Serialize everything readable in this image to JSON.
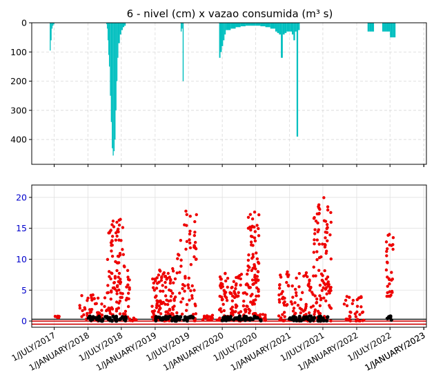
{
  "chart_data": [
    {
      "type": "bar",
      "title": "6 - nivel (cm) x vazao consumida (m³ s)",
      "y_inverted": true,
      "ylim": [
        0,
        485
      ],
      "yticks": [
        "0",
        "100",
        "200",
        "300",
        "400"
      ],
      "grid": true,
      "color": "#00BFBF",
      "series": [
        {
          "x_start": "2017-06-07",
          "x_end": "2017-07-02",
          "levels": [
            95,
            60,
            20,
            10,
            5
          ]
        },
        {
          "x_start": "2018-04-10",
          "x_end": "2018-04-25",
          "levels": [
            5,
            20,
            60,
            110
          ]
        },
        {
          "x_start": "2018-04-25",
          "x_end": "2018-06-15",
          "levels": [
            150,
            250,
            340,
            430,
            455,
            440,
            400,
            300,
            200,
            120
          ]
        },
        {
          "x_start": "2018-06-15",
          "x_end": "2018-07-25",
          "levels": [
            70,
            40,
            25,
            15,
            10
          ]
        },
        {
          "x_start": "2019-05-20",
          "x_end": "2019-06-05",
          "levels": [
            30,
            20,
            200
          ]
        },
        {
          "x_start": "2019-12-15",
          "x_end": "2020-01-20",
          "levels": [
            120,
            100,
            80,
            60,
            40
          ]
        },
        {
          "x_start": "2020-01-20",
          "x_end": "2020-10-15",
          "levels": [
            25,
            20,
            15,
            12,
            10,
            10,
            10,
            12,
            15,
            20
          ]
        },
        {
          "x_start": "2020-10-15",
          "x_end": "2021-01-05",
          "levels": [
            30,
            35,
            40,
            120,
            40,
            35,
            30,
            30
          ]
        },
        {
          "x_start": "2021-01-05",
          "x_end": "2021-02-25",
          "levels": [
            30,
            40,
            60,
            30,
            390,
            25
          ]
        },
        {
          "x_start": "2022-03-01",
          "x_end": "2022-04-05",
          "levels": [
            30,
            30,
            30
          ]
        },
        {
          "x_start": "2022-05-20",
          "x_end": "2022-07-01",
          "levels": [
            30,
            30,
            30,
            30
          ]
        },
        {
          "x_start": "2022-07-01",
          "x_end": "2022-07-31",
          "levels": [
            50,
            50
          ]
        }
      ]
    },
    {
      "type": "scatter",
      "ylim": [
        -1,
        22
      ],
      "yticks": [
        "0",
        "5",
        "10",
        "15",
        "20"
      ],
      "grid": true,
      "xticks": [
        "1/JULY/2017",
        "1/JANUARY/2018",
        "1/JULY/2018",
        "1/JANUARY/2019",
        "1/JULY/2019",
        "1/JANUARY/2020",
        "1/JULY/2020",
        "1/JANUARY/2021",
        "1/JULY/2021",
        "1/JANUARY/2022",
        "1/JULY/2022",
        "1/JANUARY/2023",
        "1/JANUARY/2023"
      ],
      "xtick_dates": [
        "2017-07-01",
        "2018-01-01",
        "2018-07-01",
        "2019-01-01",
        "2019-07-01",
        "2020-01-01",
        "2020-07-01",
        "2021-01-01",
        "2021-07-01",
        "2022-01-01",
        "2022-07-01",
        "2023-01-01",
        "2023-01-01"
      ],
      "xlim": [
        "2017-03-01",
        "2023-01-15"
      ],
      "reference_lines": [
        {
          "y": 0,
          "color": "#cc0000"
        },
        {
          "y": -0.5,
          "color": "#cc0000"
        },
        {
          "y": 0.3,
          "color": "#000000"
        }
      ],
      "series": [
        {
          "color": "#ee0000",
          "clusters": [
            {
              "x_start": "2017-07-01",
              "x_end": "2017-08-01",
              "y_min": 0.5,
              "y_max": 0.8,
              "count": 10
            },
            {
              "x_start": "2017-11-15",
              "x_end": "2018-04-15",
              "y_min": 0.0,
              "y_max": 4.5,
              "count": 45
            },
            {
              "x_start": "2018-04-15",
              "x_end": "2018-07-15",
              "y_min": 1.0,
              "y_max": 16.5,
              "count": 90
            },
            {
              "x_start": "2018-07-15",
              "x_end": "2018-08-15",
              "y_min": 0.0,
              "y_max": 9.0,
              "count": 20
            },
            {
              "x_start": "2018-08-15",
              "x_end": "2018-09-20",
              "y_min": 0.0,
              "y_max": 0.5,
              "count": 8
            },
            {
              "x_start": "2018-12-15",
              "x_end": "2019-04-20",
              "y_min": 0.0,
              "y_max": 8.5,
              "count": 110
            },
            {
              "x_start": "2019-04-20",
              "x_end": "2019-08-15",
              "y_min": 0.0,
              "y_max": 18.0,
              "count": 70
            },
            {
              "x_start": "2019-09-15",
              "x_end": "2019-12-15",
              "y_min": 0.0,
              "y_max": 1.0,
              "count": 15
            },
            {
              "x_start": "2019-12-15",
              "x_end": "2020-05-20",
              "y_min": 0.0,
              "y_max": 8.0,
              "count": 110
            },
            {
              "x_start": "2020-05-20",
              "x_end": "2020-07-20",
              "y_min": 0.5,
              "y_max": 18.5,
              "count": 80
            },
            {
              "x_start": "2020-07-20",
              "x_end": "2020-08-25",
              "y_min": 0.0,
              "y_max": 1.2,
              "count": 12
            },
            {
              "x_start": "2020-11-01",
              "x_end": "2021-05-01",
              "y_min": 0.0,
              "y_max": 8.0,
              "count": 95
            },
            {
              "x_start": "2021-05-01",
              "x_end": "2021-08-15",
              "y_min": 0.0,
              "y_max": 21.0,
              "count": 110
            },
            {
              "x_start": "2021-10-20",
              "x_end": "2022-02-15",
              "y_min": 0.0,
              "y_max": 4.0,
              "count": 35
            },
            {
              "x_start": "2022-06-10",
              "x_end": "2022-07-20",
              "y_min": 4.0,
              "y_max": 14.5,
              "count": 30
            }
          ]
        },
        {
          "color": "#000000",
          "clusters": [
            {
              "x_start": "2018-01-01",
              "x_end": "2018-07-31",
              "y_min": 0.0,
              "y_max": 0.8,
              "count": 50
            },
            {
              "x_start": "2019-01-01",
              "x_end": "2019-07-31",
              "y_min": 0.0,
              "y_max": 0.8,
              "count": 50
            },
            {
              "x_start": "2020-01-01",
              "x_end": "2020-07-31",
              "y_min": 0.0,
              "y_max": 0.8,
              "count": 55
            },
            {
              "x_start": "2021-01-01",
              "x_end": "2021-07-31",
              "y_min": 0.0,
              "y_max": 0.8,
              "count": 55
            },
            {
              "x_start": "2022-06-15",
              "x_end": "2022-07-10",
              "y_min": 0.0,
              "y_max": 0.8,
              "count": 10
            }
          ]
        }
      ]
    }
  ]
}
